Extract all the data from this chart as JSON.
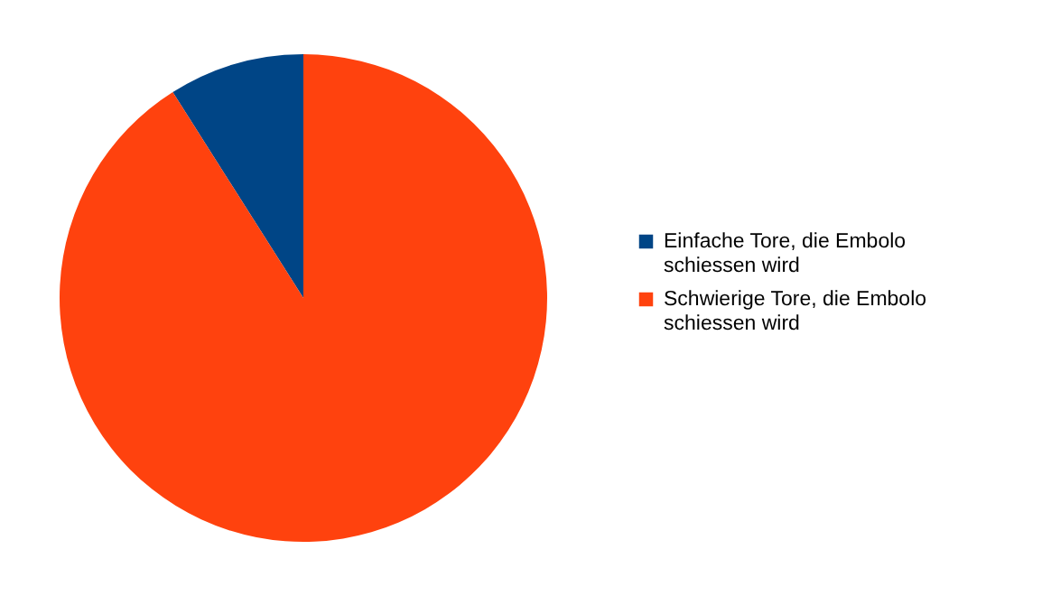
{
  "chart_data": {
    "type": "pie",
    "categories": [
      "Einfache Tore, die Embolo schiessen wird",
      "Schwierige Tore, die Embolo schiessen wird"
    ],
    "values": [
      9,
      91
    ],
    "colors": [
      "#004586",
      "#ff420e"
    ],
    "legend": "right"
  }
}
